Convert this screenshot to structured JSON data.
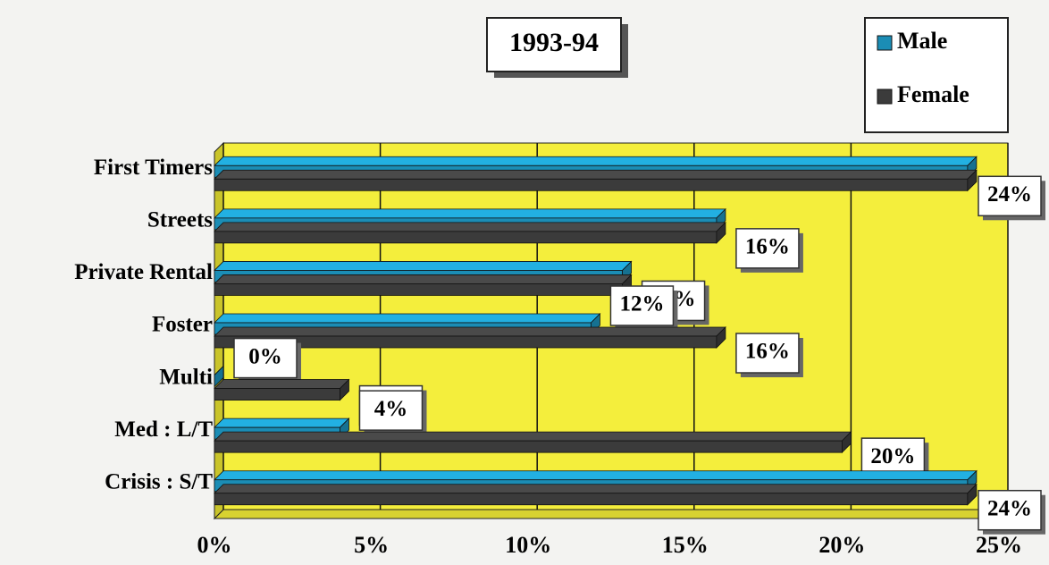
{
  "chart_data": {
    "type": "bar",
    "orientation": "horizontal",
    "title": "1993-94",
    "categories": [
      "First Timers",
      "Streets",
      "Private Rental",
      "Foster",
      "Multi",
      "Med : L/T",
      "Crisis : S/T"
    ],
    "series": [
      {
        "name": "Male",
        "color": "#1b8db5",
        "values": [
          24,
          16,
          13,
          12,
          0,
          4,
          24
        ],
        "value_labels": [
          null,
          null,
          null,
          "12%",
          "0%",
          "4%",
          null
        ]
      },
      {
        "name": "Female",
        "color": "#3b3b3b",
        "values": [
          24,
          16,
          13,
          16,
          4,
          20,
          24
        ],
        "value_labels": [
          "24%",
          "16%",
          "13%",
          "16%",
          "4%",
          "20%",
          "24%"
        ]
      }
    ],
    "xlim": [
      0,
      25
    ],
    "xticks": [
      {
        "value": 0,
        "label": "0%"
      },
      {
        "value": 5,
        "label": "5%"
      },
      {
        "value": 10,
        "label": "10%"
      },
      {
        "value": 15,
        "label": "15%"
      },
      {
        "value": 20,
        "label": "20%"
      },
      {
        "value": 25,
        "label": "25%"
      }
    ],
    "grid": true,
    "legend": "top-right",
    "background": "#f4ee3c"
  }
}
